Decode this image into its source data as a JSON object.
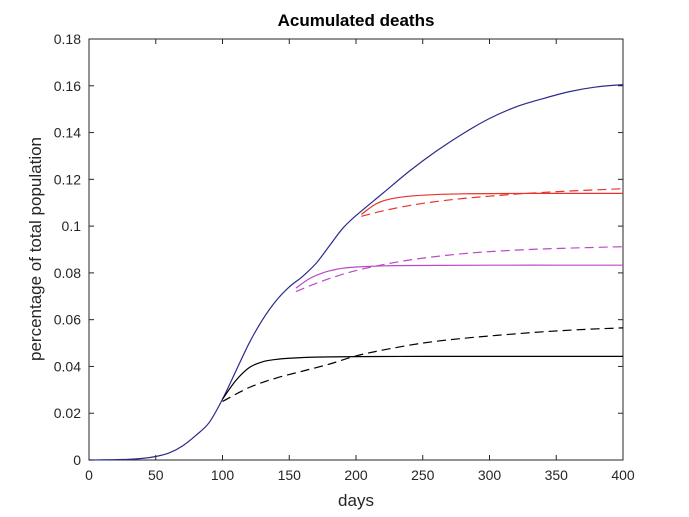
{
  "chart_data": {
    "type": "line",
    "title": "Acumulated deaths",
    "xlabel": "days",
    "ylabel": "percentage of total population",
    "xlim": [
      0,
      400
    ],
    "ylim": [
      0,
      0.18
    ],
    "xticks": [
      0,
      50,
      100,
      150,
      200,
      250,
      300,
      350,
      400
    ],
    "xtick_labels": [
      "0",
      "50",
      "100",
      "150",
      "200",
      "250",
      "300",
      "350",
      "400"
    ],
    "yticks": [
      0,
      0.02,
      0.04,
      0.06,
      0.08,
      0.1,
      0.12,
      0.14,
      0.16,
      0.18
    ],
    "ytick_labels": [
      "0",
      "0.02",
      "0.04",
      "0.06",
      "0.08",
      "0.1",
      "0.12",
      "0.14",
      "0.16",
      "0.18"
    ],
    "grid": false,
    "legend": "none",
    "series": [
      {
        "color": "#2b2b8c",
        "style": "solid",
        "x": [
          0,
          25,
          40,
          50,
          60,
          70,
          80,
          90,
          100,
          110,
          120,
          130,
          140,
          150,
          160,
          170,
          180,
          190,
          200,
          220,
          240,
          260,
          280,
          300,
          320,
          340,
          360,
          380,
          400
        ],
        "y": [
          0,
          0.0002,
          0.0007,
          0.0015,
          0.003,
          0.006,
          0.0105,
          0.016,
          0.026,
          0.038,
          0.05,
          0.06,
          0.068,
          0.074,
          0.0785,
          0.084,
          0.0915,
          0.099,
          0.1045,
          0.114,
          0.1235,
          0.132,
          0.1395,
          0.146,
          0.151,
          0.1545,
          0.1575,
          0.1595,
          0.1605
        ]
      },
      {
        "color": "#000000",
        "style": "solid",
        "x": [
          100,
          110,
          120,
          130,
          140,
          150,
          170,
          200,
          250,
          300,
          350,
          400
        ],
        "y": [
          0.026,
          0.034,
          0.0395,
          0.042,
          0.043,
          0.0435,
          0.044,
          0.0442,
          0.0443,
          0.0443,
          0.0443,
          0.0443
        ]
      },
      {
        "color": "#000000",
        "style": "dashed",
        "x": [
          100,
          120,
          140,
          160,
          180,
          200,
          220,
          250,
          280,
          310,
          340,
          370,
          400
        ],
        "y": [
          0.025,
          0.031,
          0.035,
          0.038,
          0.041,
          0.0445,
          0.047,
          0.05,
          0.052,
          0.0535,
          0.0548,
          0.0558,
          0.0565
        ]
      },
      {
        "color": "#b84bc4",
        "style": "solid",
        "x": [
          155,
          165,
          175,
          185,
          195,
          210,
          230,
          260,
          300,
          350,
          400
        ],
        "y": [
          0.0735,
          0.0775,
          0.08,
          0.0815,
          0.0823,
          0.0828,
          0.0831,
          0.0832,
          0.0833,
          0.0833,
          0.0833
        ]
      },
      {
        "color": "#b84bc4",
        "style": "dashed",
        "x": [
          155,
          170,
          185,
          200,
          220,
          240,
          260,
          280,
          300,
          330,
          360,
          400
        ],
        "y": [
          0.072,
          0.0755,
          0.0785,
          0.081,
          0.0835,
          0.0855,
          0.087,
          0.0882,
          0.0891,
          0.09,
          0.0906,
          0.0912
        ]
      },
      {
        "color": "#e8322a",
        "style": "solid",
        "x": [
          204,
          215,
          225,
          240,
          260,
          280,
          300,
          330,
          360,
          400
        ],
        "y": [
          0.105,
          0.1095,
          0.1115,
          0.1128,
          0.1135,
          0.1138,
          0.1139,
          0.114,
          0.114,
          0.114
        ]
      },
      {
        "color": "#e8322a",
        "style": "dashed",
        "x": [
          204,
          220,
          240,
          260,
          280,
          300,
          320,
          340,
          360,
          380,
          400
        ],
        "y": [
          0.1042,
          0.1065,
          0.1088,
          0.1105,
          0.1118,
          0.1128,
          0.1137,
          0.1144,
          0.115,
          0.1155,
          0.116
        ]
      }
    ]
  }
}
